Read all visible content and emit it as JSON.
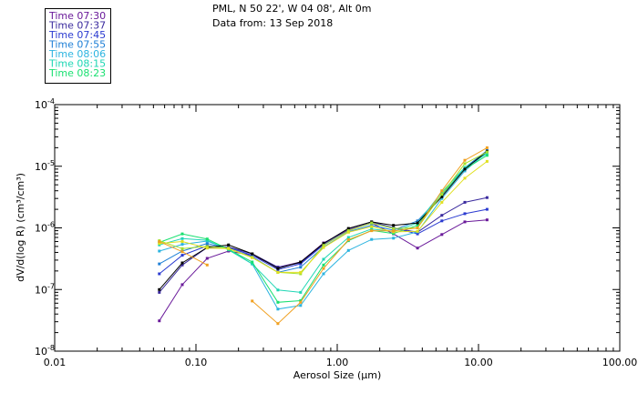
{
  "header": {
    "line1": "PML, N 50 22', W 04 08', Alt 0m",
    "line2": "Data from: 13 Sep 2018"
  },
  "chart_data": {
    "type": "line",
    "title": "",
    "xlabel": "Aerosol Size (µm)",
    "ylabel": "dV/d(log R) (cm³/cm³)",
    "x_scale": "log",
    "y_scale": "log",
    "xlim": [
      0.01,
      100
    ],
    "ylim": [
      1e-08,
      0.0001
    ],
    "x_ticks": [
      0.01,
      0.1,
      1,
      10,
      100
    ],
    "x_tick_labels": [
      "0.01",
      "0.10",
      "1.00",
      "10.00",
      "100.00"
    ],
    "y_ticks": [
      1e-08,
      1e-07,
      1e-06,
      1e-05,
      0.0001
    ],
    "y_tick_labels": [
      {
        "base": "10",
        "exp": "-8"
      },
      {
        "base": "10",
        "exp": "-7"
      },
      {
        "base": "10",
        "exp": "-6"
      },
      {
        "base": "10",
        "exp": "-5"
      },
      {
        "base": "10",
        "exp": "-4"
      }
    ],
    "grid": false,
    "legend_position": "top-left, outside plot",
    "x": [
      0.055,
      0.08,
      0.12,
      0.17,
      0.25,
      0.38,
      0.55,
      0.8,
      1.2,
      1.75,
      2.5,
      3.7,
      5.5,
      8.0,
      11.5
    ],
    "series": [
      {
        "name": "Time 07:30",
        "color": "#6a1a9a",
        "values": [
          3.1e-08,
          1.2e-07,
          3.2e-07,
          4.2e-07,
          3.6e-07,
          2.3e-07,
          2.8e-07,
          5.7e-07,
          9.2e-07,
          1.2e-06,
          8e-07,
          4.7e-07,
          7.8e-07,
          1.25e-06,
          1.35e-06
        ]
      },
      {
        "name": "Time 07:37",
        "color": "#3a2a9e",
        "values": [
          9e-08,
          2.5e-07,
          4.8e-07,
          4.9e-07,
          3.8e-07,
          2.3e-07,
          2.7e-07,
          5.5e-07,
          9.6e-07,
          1.25e-06,
          1e-06,
          8.5e-07,
          1.6e-06,
          2.6e-06,
          3.1e-06
        ]
      },
      {
        "name": "Time 07:45",
        "color": "#2a3ad0",
        "values": [
          1.8e-07,
          3.6e-07,
          5.1e-07,
          4.8e-07,
          3.6e-07,
          2.1e-07,
          2.6e-07,
          5.3e-07,
          9e-07,
          1.2e-06,
          1e-06,
          8e-07,
          1.3e-06,
          1.7e-06,
          2e-06
        ]
      },
      {
        "name": "Time 07:55",
        "color": "#1e7fd6",
        "values": [
          2.6e-07,
          4.2e-07,
          5.6e-07,
          4.6e-07,
          3.4e-07,
          1.9e-07,
          2.3e-07,
          4.9e-07,
          8.6e-07,
          1.1e-06,
          9.2e-07,
          1.3e-06,
          3.4e-06,
          9.5e-06,
          1.8e-05
        ]
      },
      {
        "name": "Time 08:06",
        "color": "#2cb4e0",
        "values": [
          4.2e-07,
          5.4e-07,
          6.1e-07,
          4.5e-07,
          2.6e-07,
          4.8e-08,
          5.5e-08,
          1.8e-07,
          4.3e-07,
          6.5e-07,
          6.8e-07,
          8.6e-07,
          3e-06,
          8.4e-06,
          1.7e-05
        ]
      },
      {
        "name": "Time 08:15",
        "color": "#1ed6b4",
        "values": [
          5.3e-07,
          6.7e-07,
          6.3e-07,
          4.4e-07,
          2.6e-07,
          9.8e-08,
          9e-08,
          3.1e-07,
          7e-07,
          9.6e-07,
          8.7e-07,
          1.2e-06,
          3.8e-06,
          9.6e-06,
          1.6e-05
        ]
      },
      {
        "name": "Time 08:23",
        "color": "#18e070",
        "values": [
          5.8e-07,
          8e-07,
          6.6e-07,
          4.5e-07,
          2.8e-07,
          6.2e-08,
          6.6e-08,
          2.5e-07,
          6.2e-07,
          9.1e-07,
          8.1e-07,
          1.1e-06,
          3.5e-06,
          9e-06,
          1.5e-05
        ]
      },
      {
        "name": "",
        "color": "#000000",
        "values": [
          1e-07,
          2.7e-07,
          4.8e-07,
          5.3e-07,
          3.8e-07,
          2.2e-07,
          2.8e-07,
          5.6e-07,
          9.8e-07,
          1.25e-06,
          1.1e-06,
          1.2e-06,
          3.2e-06,
          9e-06,
          1.75e-05
        ]
      },
      {
        "name": "",
        "color": "#a6e02c",
        "values": [
          6.2e-07,
          4.6e-07,
          5e-07,
          4.7e-07,
          3.3e-07,
          1.9e-07,
          1.8e-07,
          5.2e-07,
          9e-07,
          1.2e-06,
          9.8e-07,
          1e-06,
          3.5e-06,
          1.1e-05,
          1.7e-05
        ]
      },
      {
        "name": "",
        "color": "#e0e020",
        "values": [
          5.6e-07,
          6e-07,
          4.7e-07,
          4.6e-07,
          3.3e-07,
          1.9e-07,
          1.9e-07,
          4.8e-07,
          8.5e-07,
          1.05e-06,
          8.6e-07,
          8.8e-07,
          2.6e-06,
          6.4e-06,
          1.2e-05
        ]
      },
      {
        "name": "",
        "color": "#f0a020",
        "values": [
          6e-07,
          4.1e-07,
          2.5e-07,
          null,
          6.5e-08,
          2.8e-08,
          6.2e-08,
          2.2e-07,
          6.4e-07,
          9e-07,
          8.9e-07,
          1e-06,
          4e-06,
          1.25e-05,
          2e-05
        ]
      }
    ]
  }
}
